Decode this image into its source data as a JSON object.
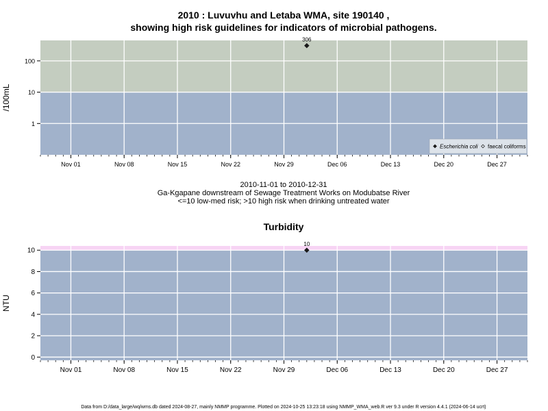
{
  "page": {
    "title_line1": "2010 : Luvuvhu and Letaba WMA, site 190140 ,",
    "title_line2": "showing high risk guidelines for indicators of microbial pathogens.",
    "date_range": "2010-11-01 to 2010-12-31",
    "site_description": "Ga-Kgapane downstream of Sewage Treatment Works on Modubatse River",
    "risk_note": "<=10 low-med risk; >10 high risk when drinking untreated water",
    "footer": "Data from D:/data_large/wq/wms.db dated 2024-08-27, mainly NMMP programme. Plotted on 2024-10-25 13:23:18 using NMMP_WMA_web.R ver 9.3 under R version 4.4.1 (2024-06-14 ucrt)"
  },
  "colors": {
    "high_risk_band": "#c4cdc0",
    "low_risk_band": "#a1b2cb",
    "turbidity_band": "#f7d4f4",
    "grid": "#ffffff",
    "point": "#1a1a1a"
  },
  "chart_data": [
    {
      "type": "scatter",
      "title": "",
      "xlabel": "",
      "ylabel": "/100mL",
      "y_scale": "log10",
      "xlim": [
        "2010-10-28",
        "2010-12-31"
      ],
      "ylim": [
        0.1,
        450
      ],
      "x_ticks": [
        "Nov 01",
        "Nov 08",
        "Nov 15",
        "Nov 22",
        "Nov 29",
        "Dec 06",
        "Dec 13",
        "Dec 20",
        "Dec 27"
      ],
      "y_ticks": [
        "1",
        "10",
        "100"
      ],
      "y_tick_values": [
        1,
        10,
        100
      ],
      "guideline_bands": [
        {
          "from": 0.1,
          "to": 10,
          "color": "#a1b2cb"
        },
        {
          "from": 10,
          "to": 450,
          "color": "#c4cdc0"
        }
      ],
      "grid": true,
      "legend_position": "bottom-right",
      "series": [
        {
          "name": "Escherichia coli",
          "marker": "filled-diamond",
          "points": [
            {
              "x": "2010-12-02",
              "y": 306,
              "label": "306"
            }
          ]
        },
        {
          "name": "faecal coliforms",
          "marker": "open-diamond",
          "points": []
        }
      ]
    },
    {
      "type": "scatter",
      "title": "Turbidity",
      "xlabel": "",
      "ylabel": "NTU",
      "y_scale": "linear",
      "xlim": [
        "2010-10-28",
        "2010-12-31"
      ],
      "ylim": [
        -0.3,
        10.4
      ],
      "x_ticks": [
        "Nov 01",
        "Nov 08",
        "Nov 15",
        "Nov 22",
        "Nov 29",
        "Dec 06",
        "Dec 13",
        "Dec 20",
        "Dec 27"
      ],
      "y_ticks": [
        "0",
        "2",
        "4",
        "6",
        "8",
        "10"
      ],
      "y_tick_values": [
        0,
        2,
        4,
        6,
        8,
        10
      ],
      "guideline_bands": [
        {
          "from": -0.3,
          "to": 10,
          "color": "#a1b2cb"
        },
        {
          "from": 10,
          "to": 10.4,
          "color": "#f7d4f4"
        }
      ],
      "grid": true,
      "legend_position": "none",
      "series": [
        {
          "marker": "filled-diamond",
          "points": [
            {
              "x": "2010-12-02",
              "y": 10,
              "label": "10"
            }
          ]
        }
      ]
    }
  ]
}
